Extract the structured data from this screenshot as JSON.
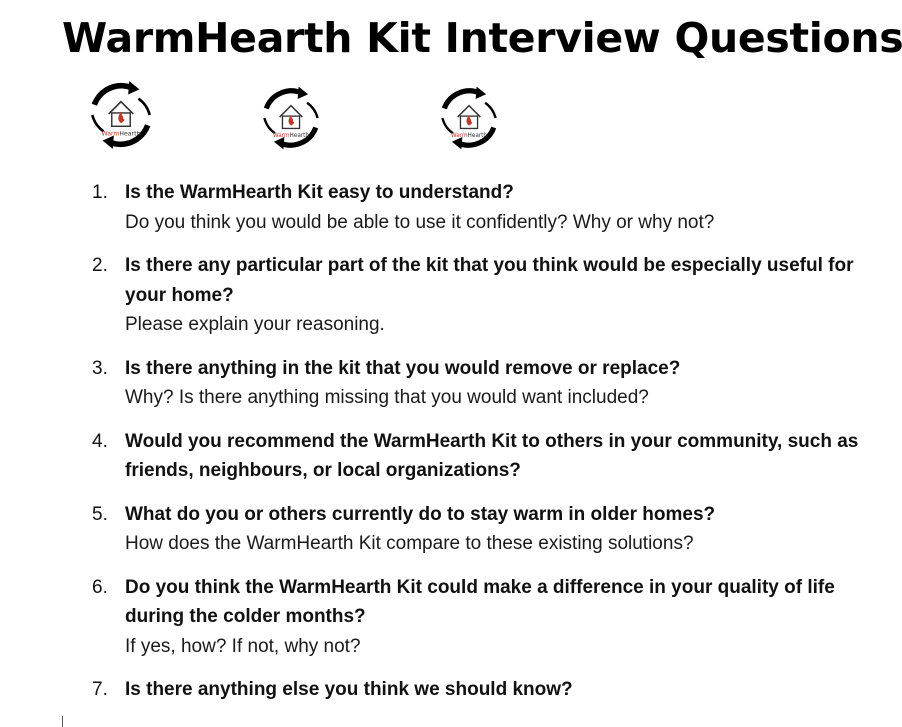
{
  "title": "WarmHearth Kit Interview Questions",
  "logos": [
    {
      "icon": "warmhearth-logo-icon",
      "wordmark": "WarmHearth"
    },
    {
      "icon": "warmhearth-logo-icon",
      "wordmark": "WarmHearth"
    },
    {
      "icon": "warmhearth-logo-icon",
      "wordmark": "WarmHearth"
    }
  ],
  "colors": {
    "text": "#111111",
    "flame": "#c0392b",
    "logo_ring": "#000000"
  },
  "questions": [
    {
      "num": "1.",
      "text": "Is the WarmHearth Kit easy to understand?",
      "sub": "Do you think you would be able to use it confidently? Why or why not?"
    },
    {
      "num": "2.",
      "text": "Is there any particular part of the kit that you think would be especially useful for your home?",
      "sub": "Please explain your reasoning."
    },
    {
      "num": "3.",
      "text": "Is there anything in the kit that you would remove or replace?",
      "sub": "Why? Is there anything missing that you would want included?"
    },
    {
      "num": "4.",
      "text": "Would you recommend the WarmHearth Kit to others in your community, such as friends, neighbours, or local organizations?",
      "sub": ""
    },
    {
      "num": "5.",
      "text": "What do you or others currently do to stay warm in older homes?",
      "sub": "How does the WarmHearth Kit compare to these existing solutions?"
    },
    {
      "num": "6.",
      "text": "Do you think the WarmHearth Kit could make a difference in your quality of life during the colder months?",
      "sub": "If yes, how? If not, why not?"
    },
    {
      "num": "7.",
      "text": "Is there anything else you think we should know?",
      "sub": ""
    }
  ]
}
